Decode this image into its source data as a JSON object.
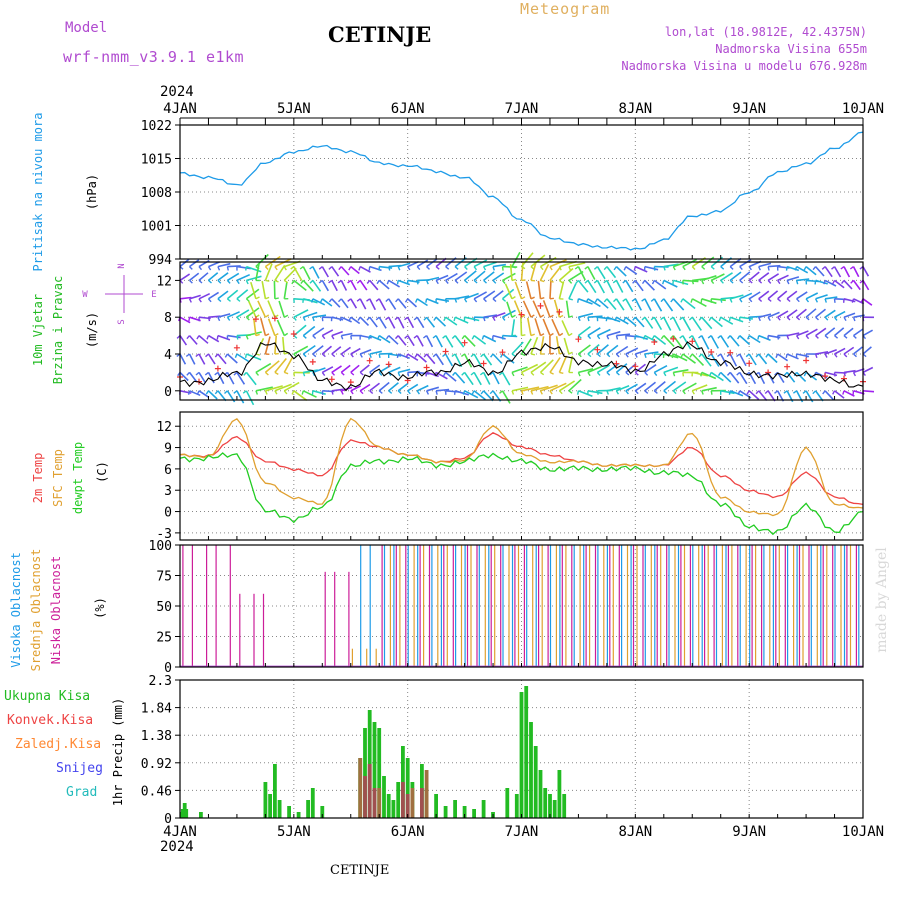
{
  "header": {
    "model_label": "Model",
    "model_value": "wrf-nmm_v3.9.1  e1km",
    "station": "CETINJE",
    "meteogram": "Meteogram",
    "lonlat": "lon,lat (18.9812E, 42.4375N)",
    "altitude": "Nadmorska Visina 655m",
    "model_altitude": "Nadmorska Visina u modelu 676.928m",
    "year": "2024",
    "footer_station": "CETINJE",
    "watermark": "made by Angel",
    "colors": {
      "model": "#b04bd0",
      "meteogram": "#e0b060",
      "info": "#b04bd0"
    }
  },
  "x_axis": {
    "days": [
      "4JAN",
      "5JAN",
      "6JAN",
      "7JAN",
      "8JAN",
      "9JAN",
      "10JAN"
    ],
    "year": "2024"
  },
  "panels": {
    "pressure": {
      "label": "Pritisak na nivou mora",
      "unit": "(hPa)",
      "ticks": [
        "1022",
        "1015",
        "1008",
        "1001",
        "994"
      ],
      "color": "#1e9be8"
    },
    "wind": {
      "label1": "10m Vjetar",
      "label2": "Brzina i Pravac",
      "unit": "(m/s)",
      "compass": {
        "n": "N",
        "s": "S",
        "e": "E",
        "w": "W"
      },
      "ticks": [
        "12",
        "8",
        "4",
        "0"
      ],
      "colors": {
        "label1": "#22bb22",
        "label2": "#22bb22"
      }
    },
    "temp": {
      "label1": "2m Temp",
      "label2": "SFC Temp",
      "label3": "dewpt Temp",
      "unit": "(C)",
      "ticks": [
        "12",
        "9",
        "6",
        "3",
        "0",
        "-3"
      ],
      "colors": {
        "t2m": "#ee4444",
        "sfc": "#e0a030",
        "dew": "#22cc22"
      }
    },
    "cloud": {
      "label1": "Visoka Oblacnost",
      "label2": "Srednja Oblacnost",
      "label3": "Niska Oblacnost",
      "unit": "(%)",
      "ticks": [
        "100",
        "75",
        "50",
        "25",
        "0"
      ],
      "colors": {
        "high": "#1e9be8",
        "mid": "#e0a030",
        "low": "#cc1e99"
      }
    },
    "precip": {
      "legend": [
        "Ukupna Kisa",
        "Konvek.Kisa",
        "Zaledj.Kisa",
        "Snijeg",
        "Grad"
      ],
      "legend_colors": [
        "#22bb22",
        "#ee4444",
        "#ff8833",
        "#4444ee",
        "#22bbbb"
      ],
      "unit": "1hr Precip (mm)",
      "ticks": [
        "2.3",
        "1.84",
        "1.38",
        "0.92",
        "0.46",
        "0"
      ]
    }
  },
  "chart_data": [
    {
      "type": "line",
      "title": "Pritisak na nivou mora",
      "ylabel": "(hPa)",
      "ylim": [
        994,
        1022
      ],
      "x": [
        "4JAN 00",
        "4JAN 06",
        "4JAN 12",
        "4JAN 18",
        "5JAN 00",
        "5JAN 06",
        "5JAN 12",
        "5JAN 18",
        "6JAN 00",
        "6JAN 06",
        "6JAN 12",
        "6JAN 18",
        "7JAN 00",
        "7JAN 06",
        "7JAN 12",
        "7JAN 18",
        "8JAN 00",
        "8JAN 06",
        "8JAN 12",
        "8JAN 18",
        "9JAN 00",
        "9JAN 06",
        "9JAN 12",
        "9JAN 18",
        "10JAN 00"
      ],
      "series": [
        {
          "name": "Pritisak na nivou mora",
          "values": [
            1012,
            1011,
            1009.5,
            1014,
            1016.5,
            1017.5,
            1016.5,
            1014,
            1013.5,
            1012.3,
            1011,
            1007,
            1002,
            998.5,
            997,
            996.5,
            996,
            998,
            1003,
            1004,
            1008,
            1012,
            1014,
            1017,
            1020.5
          ]
        }
      ]
    },
    {
      "type": "line",
      "title": "10m Vjetar Brzina i Pravac",
      "ylabel": "(m/s)",
      "ylim": [
        -1,
        14
      ],
      "x": [
        "4JAN 00",
        "4JAN 06",
        "4JAN 12",
        "4JAN 18",
        "5JAN 00",
        "5JAN 06",
        "5JAN 12",
        "5JAN 18",
        "6JAN 00",
        "6JAN 06",
        "6JAN 12",
        "6JAN 18",
        "7JAN 00",
        "7JAN 06",
        "7JAN 12",
        "7JAN 18",
        "8JAN 00",
        "8JAN 06",
        "8JAN 12",
        "8JAN 18",
        "9JAN 00",
        "9JAN 06",
        "9JAN 12",
        "9JAN 18",
        "10JAN 00"
      ],
      "series": [
        {
          "values": [
            1,
            1,
            2,
            5,
            4,
            1,
            0.5,
            2,
            1.5,
            2,
            3,
            2,
            4,
            5,
            3,
            3,
            2,
            4,
            5,
            3,
            2,
            1.5,
            2,
            1,
            0.5
          ]
        },
        {
          "values": [
            1.5,
            2,
            4,
            9,
            6,
            2,
            1,
            3,
            2,
            3,
            5,
            3,
            8,
            10,
            5,
            4,
            3,
            5,
            6,
            4,
            3,
            2,
            3,
            2,
            1
          ]
        }
      ]
    },
    {
      "type": "line",
      "title": "Temp",
      "ylabel": "(C)",
      "ylim": [
        -4,
        14
      ],
      "x": [
        "4JAN 00",
        "4JAN 06",
        "4JAN 12",
        "4JAN 18",
        "5JAN 00",
        "5JAN 06",
        "5JAN 12",
        "5JAN 18",
        "6JAN 00",
        "6JAN 06",
        "6JAN 12",
        "6JAN 18",
        "7JAN 00",
        "7JAN 06",
        "7JAN 12",
        "7JAN 18",
        "8JAN 00",
        "8JAN 06",
        "8JAN 12",
        "8JAN 18",
        "9JAN 00",
        "9JAN 06",
        "9JAN 12",
        "9JAN 18",
        "10JAN 00"
      ],
      "series": [
        {
          "name": "2m Temp",
          "values": [
            8,
            7.8,
            10.5,
            7,
            6,
            5,
            10,
            9,
            8,
            7,
            7.5,
            11,
            9,
            8,
            7,
            6.5,
            6.5,
            6.5,
            9,
            5,
            3,
            2,
            5.5,
            2,
            1
          ]
        },
        {
          "name": "SFC Temp",
          "values": [
            8,
            7.7,
            13,
            4,
            2,
            1,
            13,
            9,
            8,
            7,
            7.2,
            12,
            8,
            7,
            7,
            6.5,
            6.5,
            6.5,
            11,
            2,
            0,
            -0.5,
            9,
            1,
            0.5
          ]
        },
        {
          "name": "dewpt Temp",
          "values": [
            7.5,
            7.5,
            8,
            0,
            -1,
            0.5,
            6.5,
            7,
            7.5,
            6.5,
            7,
            8,
            7,
            6,
            6,
            6,
            6,
            5.5,
            5,
            1,
            -2,
            -3,
            1,
            -3,
            0
          ]
        }
      ]
    },
    {
      "type": "bar",
      "title": "Oblacnost",
      "ylabel": "(%)",
      "ylim": [
        0,
        100
      ],
      "x": [
        "4JAN 00",
        "4JAN 06",
        "4JAN 12",
        "4JAN 18",
        "5JAN 00",
        "5JAN 06",
        "5JAN 12",
        "5JAN 18",
        "6JAN 00",
        "6JAN 06",
        "6JAN 12",
        "6JAN 18",
        "7JAN 00",
        "7JAN 06",
        "7JAN 12",
        "7JAN 18",
        "8JAN 00",
        "8JAN 06",
        "8JAN 12",
        "8JAN 18",
        "9JAN 00",
        "9JAN 06",
        "9JAN 12",
        "9JAN 18",
        "10JAN 00"
      ],
      "series": [
        {
          "name": "Visoka Oblacnost",
          "values": [
            0,
            0,
            0,
            0,
            0,
            0,
            100,
            100,
            100,
            100,
            100,
            100,
            100,
            100,
            100,
            100,
            100,
            100,
            100,
            100,
            100,
            100,
            100,
            100,
            0
          ]
        },
        {
          "name": "Srednja Oblacnost",
          "values": [
            0,
            0,
            0,
            0,
            0,
            0,
            15,
            100,
            100,
            100,
            100,
            100,
            100,
            100,
            100,
            100,
            100,
            100,
            100,
            100,
            100,
            100,
            100,
            100,
            100
          ]
        },
        {
          "name": "Niska Oblacnost",
          "values": [
            100,
            100,
            60,
            0,
            0,
            78,
            0,
            100,
            100,
            100,
            100,
            100,
            100,
            100,
            100,
            100,
            100,
            100,
            100,
            100,
            100,
            100,
            100,
            100,
            100
          ]
        }
      ]
    },
    {
      "type": "bar",
      "title": "1hr Precip",
      "ylabel": "1hr Precip (mm)",
      "ylim": [
        0,
        2.3
      ],
      "series": [
        {
          "name": "Ukupna Kisa",
          "points": [
            [
              0.3,
              0.1
            ],
            [
              0.6,
              0.15
            ],
            [
              1.0,
              0.25
            ],
            [
              1.3,
              0.15
            ],
            [
              4.4,
              0.1
            ],
            [
              18.0,
              0.6
            ],
            [
              19.0,
              0.4
            ],
            [
              20.0,
              0.9
            ],
            [
              21.0,
              0.3
            ],
            [
              23.0,
              0.2
            ],
            [
              25.0,
              0.1
            ],
            [
              27.0,
              0.3
            ],
            [
              28.0,
              0.5
            ],
            [
              30.0,
              0.2
            ],
            [
              38.0,
              1.0
            ],
            [
              39.0,
              1.5
            ],
            [
              40.0,
              1.8
            ],
            [
              41.0,
              1.6
            ],
            [
              42.0,
              1.5
            ],
            [
              43.0,
              0.7
            ],
            [
              44.0,
              0.4
            ],
            [
              45.0,
              0.3
            ],
            [
              46.0,
              0.6
            ],
            [
              47.0,
              1.2
            ],
            [
              48.0,
              1.0
            ],
            [
              49.0,
              0.6
            ],
            [
              51.0,
              0.9
            ],
            [
              52.0,
              0.5
            ],
            [
              54.0,
              0.4
            ],
            [
              56.0,
              0.2
            ],
            [
              58.0,
              0.3
            ],
            [
              60.0,
              0.2
            ],
            [
              62.0,
              0.15
            ],
            [
              64.0,
              0.3
            ],
            [
              66.0,
              0.1
            ],
            [
              69.0,
              0.5
            ],
            [
              71.0,
              0.4
            ],
            [
              72.0,
              2.1
            ],
            [
              73.0,
              2.2
            ],
            [
              74.0,
              1.6
            ],
            [
              75.0,
              1.2
            ],
            [
              76.0,
              0.8
            ],
            [
              77.0,
              0.5
            ],
            [
              78.0,
              0.4
            ],
            [
              79.0,
              0.3
            ],
            [
              80.0,
              0.8
            ],
            [
              81.0,
              0.4
            ]
          ]
        },
        {
          "name": "Konvek.Kisa",
          "points": [
            [
              39.0,
              0.7
            ],
            [
              40.0,
              0.9
            ],
            [
              41.0,
              0.5
            ],
            [
              47.0,
              0.6
            ],
            [
              48.0,
              0.4
            ],
            [
              51.0,
              0.5
            ]
          ]
        },
        {
          "name": "Zaledj.Kisa",
          "points": [
            [
              38.0,
              1.0
            ],
            [
              42.0,
              0.5
            ],
            [
              49.0,
              0.5
            ],
            [
              52.0,
              0.8
            ]
          ]
        }
      ]
    }
  ]
}
